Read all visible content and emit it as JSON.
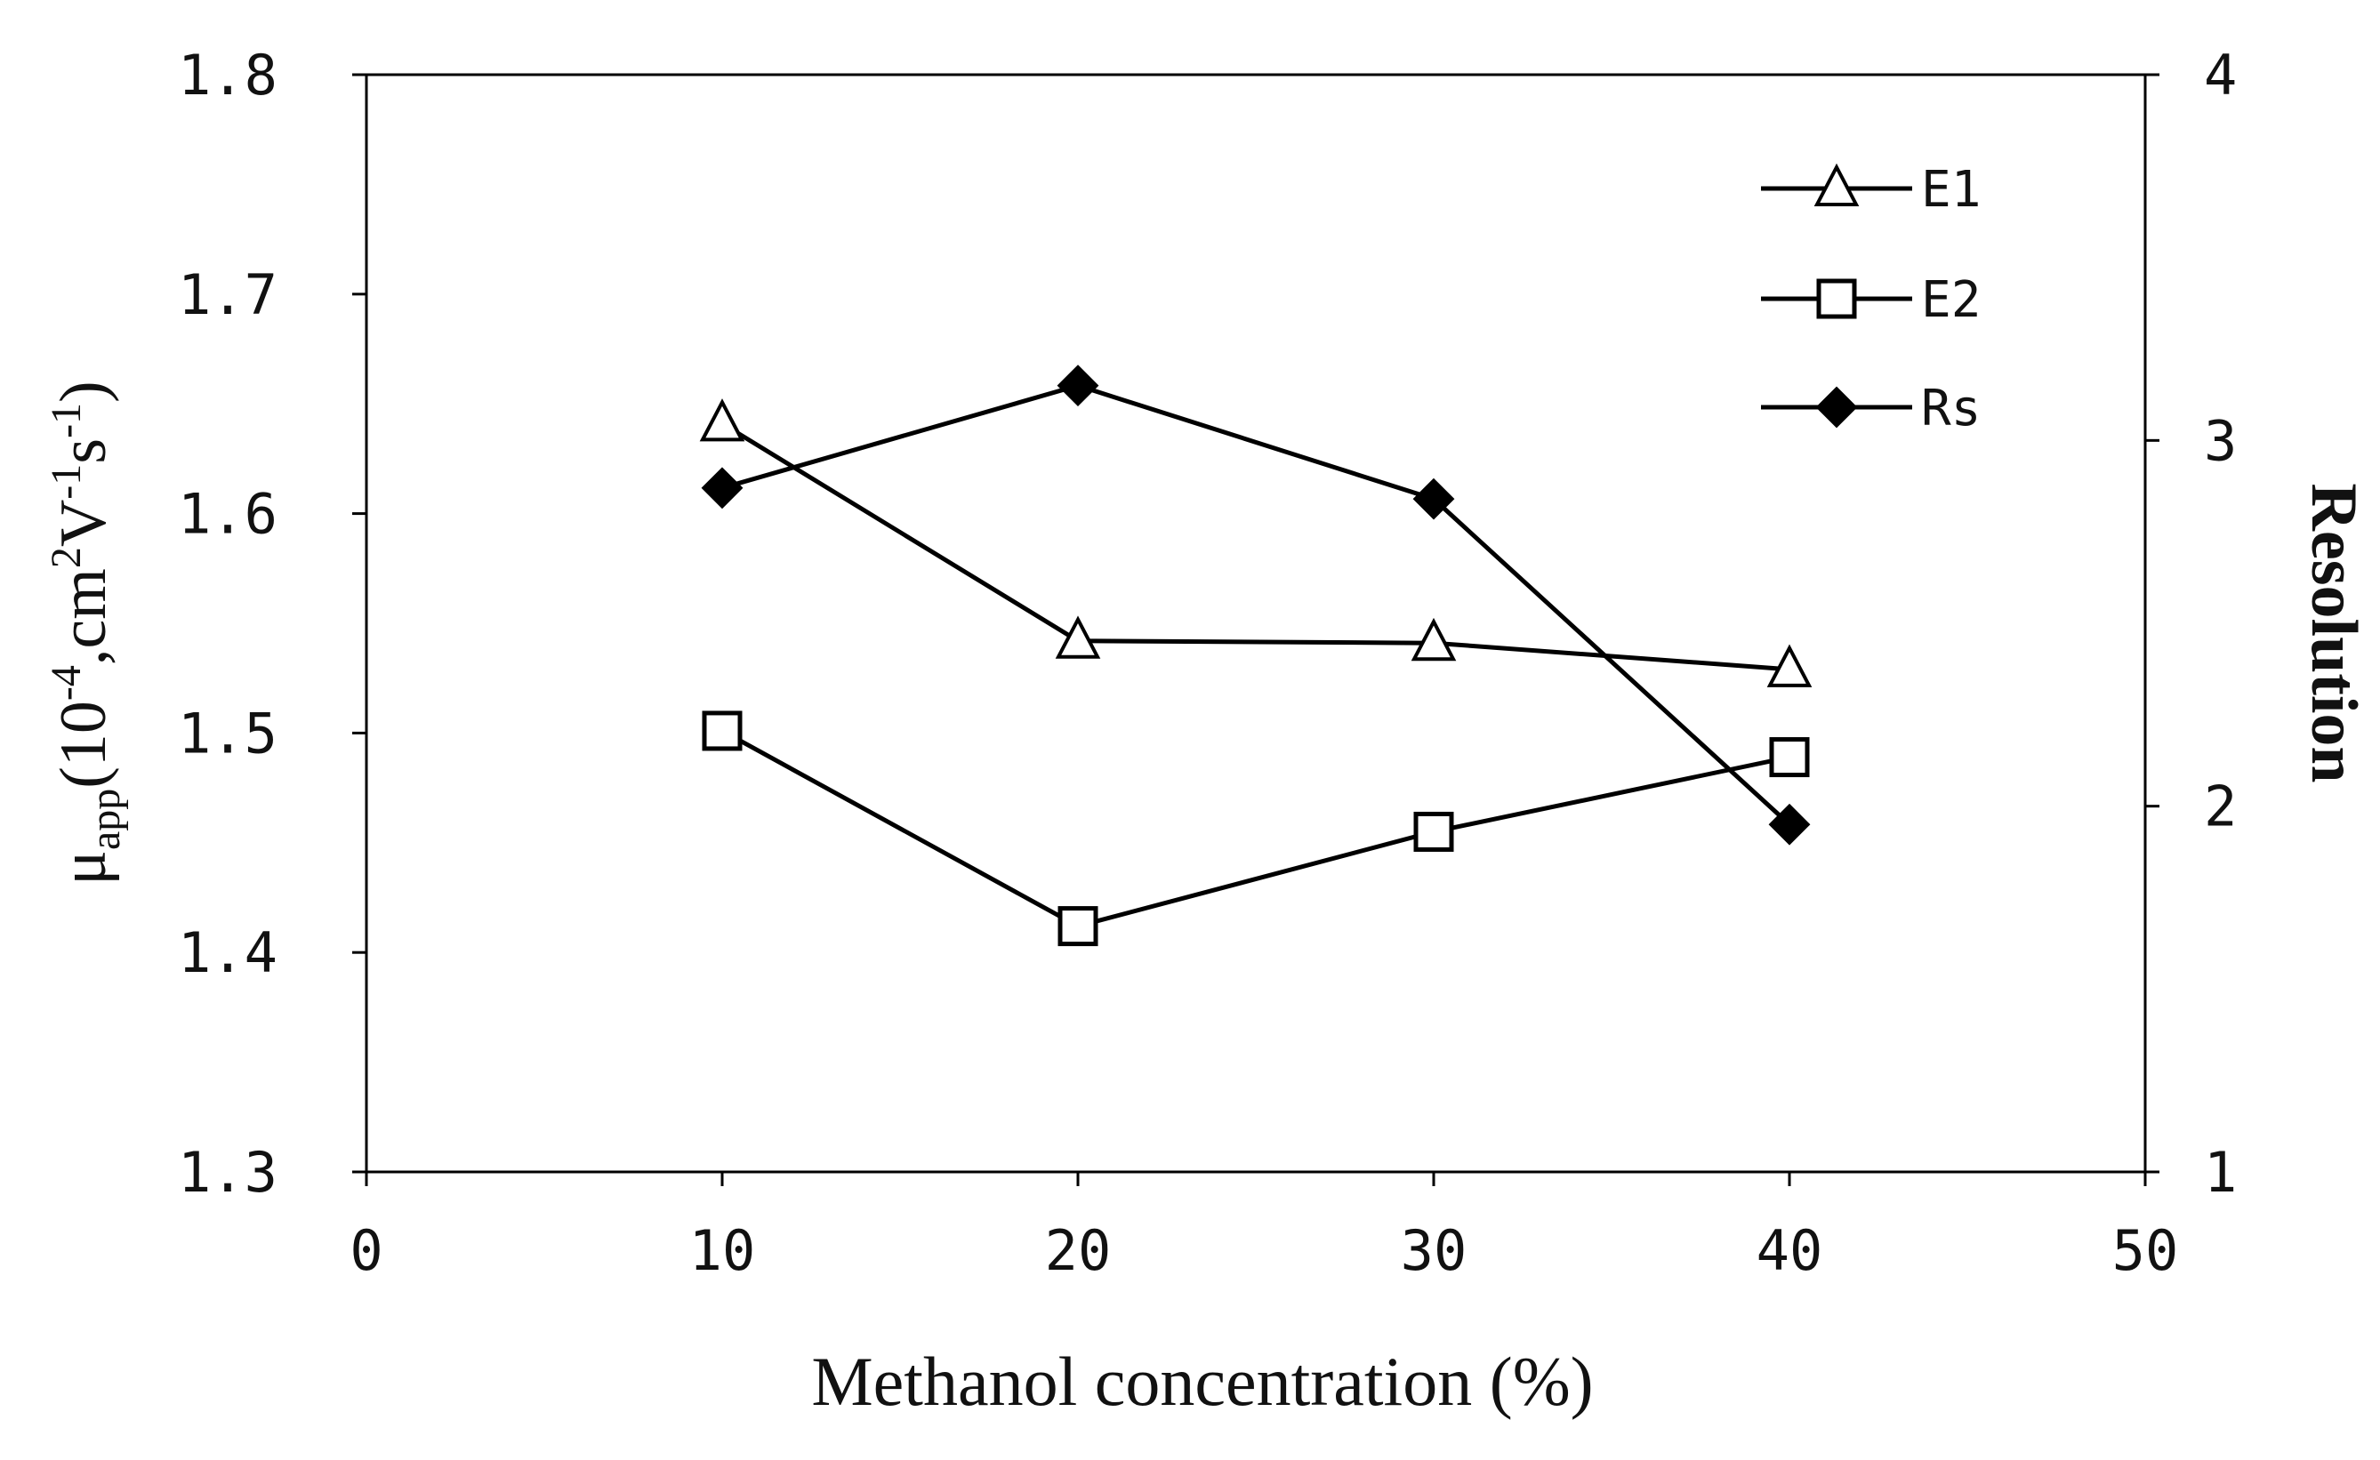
{
  "chart_data": {
    "type": "line",
    "title": "",
    "xlabel": "Methanol concentration (%)",
    "ylabel": {
      "mu": "μ",
      "sub": "app",
      "part1": "(10",
      "sup1": "-4",
      "part2": ",cm",
      "sup2": "2",
      "part3": "V",
      "sup3": "-1",
      "part4": "s",
      "sup4": "-1",
      "part5": ")"
    },
    "y2label": "Resolution",
    "xlim": [
      0,
      50
    ],
    "ylim": [
      1.3,
      1.8
    ],
    "y2lim": [
      1,
      4
    ],
    "xticks": [
      "0",
      "10",
      "20",
      "30",
      "40",
      "50"
    ],
    "yticks": [
      "1.3",
      "1.4",
      "1.5",
      "1.6",
      "1.7",
      "1.8"
    ],
    "y2ticks": [
      "1",
      "2",
      "3",
      "4"
    ],
    "x": [
      10,
      20,
      30,
      40
    ],
    "series": [
      {
        "name": "E1",
        "axis": "left",
        "marker": "triangle-open",
        "values": [
          1.641,
          1.542,
          1.541,
          1.529
        ]
      },
      {
        "name": "E2",
        "axis": "left",
        "marker": "square-open",
        "values": [
          1.501,
          1.412,
          1.455,
          1.489
        ]
      },
      {
        "name": "Rs",
        "axis": "right",
        "marker": "diamond-filled",
        "values": [
          2.87,
          3.15,
          2.84,
          1.95
        ]
      }
    ],
    "legend_position": "top-right",
    "grid": false
  }
}
